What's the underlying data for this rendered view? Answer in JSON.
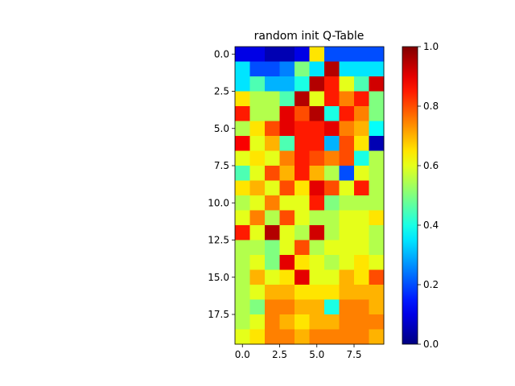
{
  "chart_data": {
    "type": "heatmap",
    "title": "random init Q-Table",
    "xlabel": "",
    "ylabel": "",
    "rows": 20,
    "cols": 10,
    "x_ticks": [
      0.0,
      2.5,
      5.0,
      7.5
    ],
    "x_tick_labels": [
      "0.0",
      "2.5",
      "5.0",
      "7.5"
    ],
    "y_ticks": [
      0.0,
      2.5,
      5.0,
      7.5,
      10.0,
      12.5,
      15.0,
      17.5
    ],
    "y_tick_labels": [
      "0.0",
      "2.5",
      "5.0",
      "7.5",
      "10.0",
      "12.5",
      "15.0",
      "17.5"
    ],
    "colorbar": {
      "cmap": "jet",
      "vmin": 0.0,
      "vmax": 1.0,
      "ticks": [
        0.0,
        0.2,
        0.4,
        0.6,
        0.8,
        1.0
      ],
      "tick_labels": [
        "0.0",
        "0.2",
        "0.4",
        "0.6",
        "0.8",
        "1.0"
      ]
    },
    "values": [
      [
        0.1,
        0.1,
        0.05,
        0.05,
        0.1,
        0.65,
        0.2,
        0.2,
        0.2,
        0.2
      ],
      [
        0.35,
        0.2,
        0.2,
        0.25,
        0.5,
        0.35,
        0.95,
        0.35,
        0.35,
        0.35
      ],
      [
        0.35,
        0.45,
        0.3,
        0.3,
        0.4,
        0.95,
        0.85,
        0.6,
        0.45,
        0.92
      ],
      [
        0.65,
        0.55,
        0.55,
        0.45,
        0.95,
        0.6,
        0.85,
        0.75,
        0.85,
        0.5
      ],
      [
        0.85,
        0.55,
        0.55,
        0.9,
        0.8,
        0.95,
        0.4,
        0.85,
        0.75,
        0.5
      ],
      [
        0.55,
        0.65,
        0.8,
        0.9,
        0.85,
        0.85,
        0.9,
        0.75,
        0.7,
        0.38
      ],
      [
        0.88,
        0.6,
        0.7,
        0.45,
        0.85,
        0.85,
        0.3,
        0.8,
        0.65,
        0.05
      ],
      [
        0.6,
        0.65,
        0.6,
        0.75,
        0.85,
        0.8,
        0.75,
        0.8,
        0.4,
        0.55
      ],
      [
        0.45,
        0.6,
        0.8,
        0.7,
        0.85,
        0.7,
        0.55,
        0.2,
        0.6,
        0.55
      ],
      [
        0.65,
        0.7,
        0.6,
        0.8,
        0.65,
        0.9,
        0.8,
        0.6,
        0.85,
        0.55
      ],
      [
        0.55,
        0.6,
        0.75,
        0.6,
        0.6,
        0.85,
        0.5,
        0.55,
        0.55,
        0.55
      ],
      [
        0.6,
        0.75,
        0.55,
        0.8,
        0.6,
        0.55,
        0.55,
        0.6,
        0.6,
        0.65
      ],
      [
        0.85,
        0.6,
        0.95,
        0.6,
        0.55,
        0.92,
        0.55,
        0.6,
        0.6,
        0.55
      ],
      [
        0.55,
        0.55,
        0.5,
        0.6,
        0.8,
        0.55,
        0.6,
        0.6,
        0.6,
        0.55
      ],
      [
        0.55,
        0.6,
        0.5,
        0.9,
        0.65,
        0.6,
        0.55,
        0.6,
        0.65,
        0.6
      ],
      [
        0.55,
        0.7,
        0.6,
        0.65,
        0.9,
        0.6,
        0.6,
        0.7,
        0.65,
        0.8
      ],
      [
        0.55,
        0.6,
        0.7,
        0.7,
        0.65,
        0.65,
        0.65,
        0.7,
        0.7,
        0.7
      ],
      [
        0.55,
        0.5,
        0.75,
        0.75,
        0.7,
        0.7,
        0.4,
        0.75,
        0.75,
        0.7
      ],
      [
        0.55,
        0.6,
        0.75,
        0.7,
        0.65,
        0.7,
        0.7,
        0.75,
        0.75,
        0.75
      ],
      [
        0.6,
        0.65,
        0.75,
        0.75,
        0.7,
        0.75,
        0.75,
        0.75,
        0.75,
        0.7
      ]
    ]
  }
}
